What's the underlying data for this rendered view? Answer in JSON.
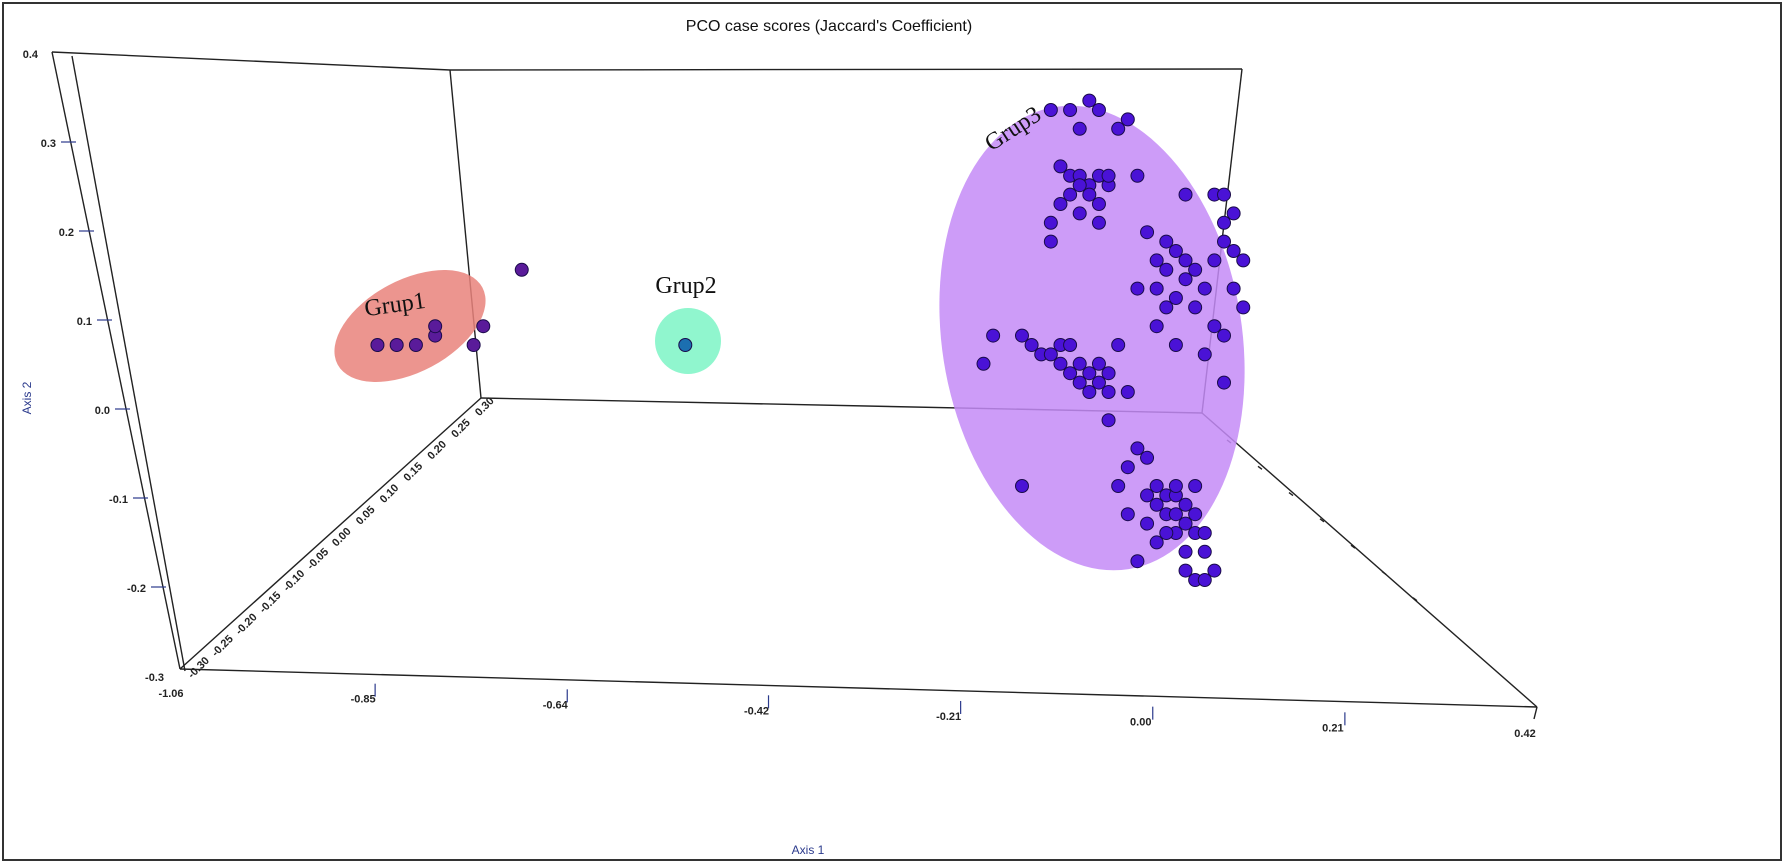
{
  "title": "PCO case scores (Jaccard's Coefficient)",
  "chart_data": {
    "type": "scatter",
    "dimensions": 3,
    "title": "PCO case scores (Jaccard's Coefficient)",
    "xlabel": "Axis 1",
    "ylabel": "Axis 2",
    "xlim": [
      -1.06,
      0.42
    ],
    "ylim": [
      -0.3,
      0.4
    ],
    "zlim": [
      -0.3,
      0.3
    ],
    "x_ticks": [
      "-1.06",
      "-0.85",
      "-0.64",
      "-0.42",
      "-0.21",
      "0.00",
      "0.21",
      "0.42"
    ],
    "y_ticks": [
      "-0.3",
      "-0.2",
      "-0.1",
      "0.0",
      "0.1",
      "0.2",
      "0.3",
      "0.4"
    ],
    "z_ticks": [
      "-0.30",
      "-0.25",
      "-0.20",
      "-0.15",
      "-0.10",
      "-0.05",
      "0.00",
      "0.05",
      "0.10",
      "0.15",
      "0.20",
      "0.25",
      "0.30"
    ],
    "grid": false,
    "point_color": "#4a12d6",
    "groups": [
      {
        "name": "Grup1",
        "color": "#e9837b",
        "point_color": "#5a1b9a",
        "points": [
          [
            -0.78,
            0.1
          ],
          [
            -0.76,
            0.1
          ],
          [
            -0.74,
            0.1
          ],
          [
            -0.72,
            0.11
          ],
          [
            -0.72,
            0.12
          ],
          [
            -0.68,
            0.1
          ],
          [
            -0.67,
            0.12
          ],
          [
            -0.63,
            0.18
          ]
        ]
      },
      {
        "name": "Grup2",
        "color": "#7cf5c6",
        "point_color": "#1c6fb0",
        "points": [
          [
            -0.46,
            0.1
          ]
        ]
      },
      {
        "name": "Grup3",
        "color": "#c48bf7",
        "point_color": "#4a12d6",
        "points": [
          [
            -0.08,
            0.35
          ],
          [
            -0.06,
            0.35
          ],
          [
            -0.04,
            0.36
          ],
          [
            -0.03,
            0.35
          ],
          [
            -0.05,
            0.33
          ],
          [
            0.0,
            0.34
          ],
          [
            -0.01,
            0.33
          ],
          [
            -0.07,
            0.29
          ],
          [
            -0.06,
            0.28
          ],
          [
            -0.05,
            0.28
          ],
          [
            -0.04,
            0.27
          ],
          [
            -0.03,
            0.28
          ],
          [
            -0.05,
            0.27
          ],
          [
            -0.06,
            0.26
          ],
          [
            -0.04,
            0.26
          ],
          [
            -0.03,
            0.25
          ],
          [
            -0.02,
            0.27
          ],
          [
            -0.07,
            0.25
          ],
          [
            -0.05,
            0.24
          ],
          [
            -0.03,
            0.23
          ],
          [
            -0.08,
            0.23
          ],
          [
            -0.08,
            0.21
          ],
          [
            -0.02,
            0.28
          ],
          [
            0.01,
            0.28
          ],
          [
            0.02,
            0.22
          ],
          [
            0.04,
            0.21
          ],
          [
            0.03,
            0.19
          ],
          [
            0.05,
            0.2
          ],
          [
            0.04,
            0.18
          ],
          [
            0.06,
            0.19
          ],
          [
            0.06,
            0.17
          ],
          [
            0.07,
            0.18
          ],
          [
            0.03,
            0.16
          ],
          [
            0.01,
            0.16
          ],
          [
            0.05,
            0.15
          ],
          [
            0.08,
            0.16
          ],
          [
            0.07,
            0.14
          ],
          [
            0.09,
            0.19
          ],
          [
            0.1,
            0.21
          ],
          [
            0.11,
            0.2
          ],
          [
            0.12,
            0.19
          ],
          [
            0.1,
            0.23
          ],
          [
            0.09,
            0.26
          ],
          [
            0.1,
            0.26
          ],
          [
            0.11,
            0.24
          ],
          [
            0.06,
            0.26
          ],
          [
            0.11,
            0.16
          ],
          [
            0.12,
            0.14
          ],
          [
            0.04,
            0.14
          ],
          [
            0.09,
            0.12
          ],
          [
            0.1,
            0.11
          ],
          [
            0.03,
            0.12
          ],
          [
            0.05,
            0.1
          ],
          [
            0.08,
            0.09
          ],
          [
            0.1,
            0.06
          ],
          [
            -0.14,
            0.11
          ],
          [
            -0.11,
            0.11
          ],
          [
            -0.1,
            0.1
          ],
          [
            -0.09,
            0.09
          ],
          [
            -0.08,
            0.09
          ],
          [
            -0.07,
            0.1
          ],
          [
            -0.06,
            0.1
          ],
          [
            -0.07,
            0.08
          ],
          [
            -0.05,
            0.08
          ],
          [
            -0.06,
            0.07
          ],
          [
            -0.04,
            0.07
          ],
          [
            -0.03,
            0.06
          ],
          [
            -0.05,
            0.06
          ],
          [
            -0.03,
            0.08
          ],
          [
            -0.02,
            0.07
          ],
          [
            -0.04,
            0.05
          ],
          [
            -0.02,
            0.05
          ],
          [
            0.0,
            0.05
          ],
          [
            -0.01,
            0.1
          ],
          [
            -0.15,
            0.08
          ],
          [
            -0.02,
            0.02
          ],
          [
            0.01,
            -0.01
          ],
          [
            0.02,
            -0.02
          ],
          [
            0.0,
            -0.03
          ],
          [
            -0.01,
            -0.05
          ],
          [
            0.02,
            -0.06
          ],
          [
            0.03,
            -0.05
          ],
          [
            0.04,
            -0.06
          ],
          [
            0.05,
            -0.06
          ],
          [
            0.03,
            -0.07
          ],
          [
            0.04,
            -0.08
          ],
          [
            0.05,
            -0.08
          ],
          [
            0.06,
            -0.07
          ],
          [
            0.06,
            -0.09
          ],
          [
            0.05,
            -0.1
          ],
          [
            0.04,
            -0.1
          ],
          [
            0.07,
            -0.1
          ],
          [
            0.08,
            -0.1
          ],
          [
            0.07,
            -0.08
          ],
          [
            0.08,
            -0.12
          ],
          [
            0.02,
            -0.09
          ],
          [
            0.0,
            -0.08
          ],
          [
            0.03,
            -0.11
          ],
          [
            0.06,
            -0.12
          ],
          [
            0.01,
            -0.13
          ],
          [
            0.06,
            -0.14
          ],
          [
            0.07,
            -0.15
          ],
          [
            0.08,
            -0.15
          ],
          [
            0.09,
            -0.14
          ],
          [
            0.05,
            -0.05
          ],
          [
            0.07,
            -0.05
          ],
          [
            -0.11,
            -0.05
          ]
        ]
      }
    ]
  }
}
